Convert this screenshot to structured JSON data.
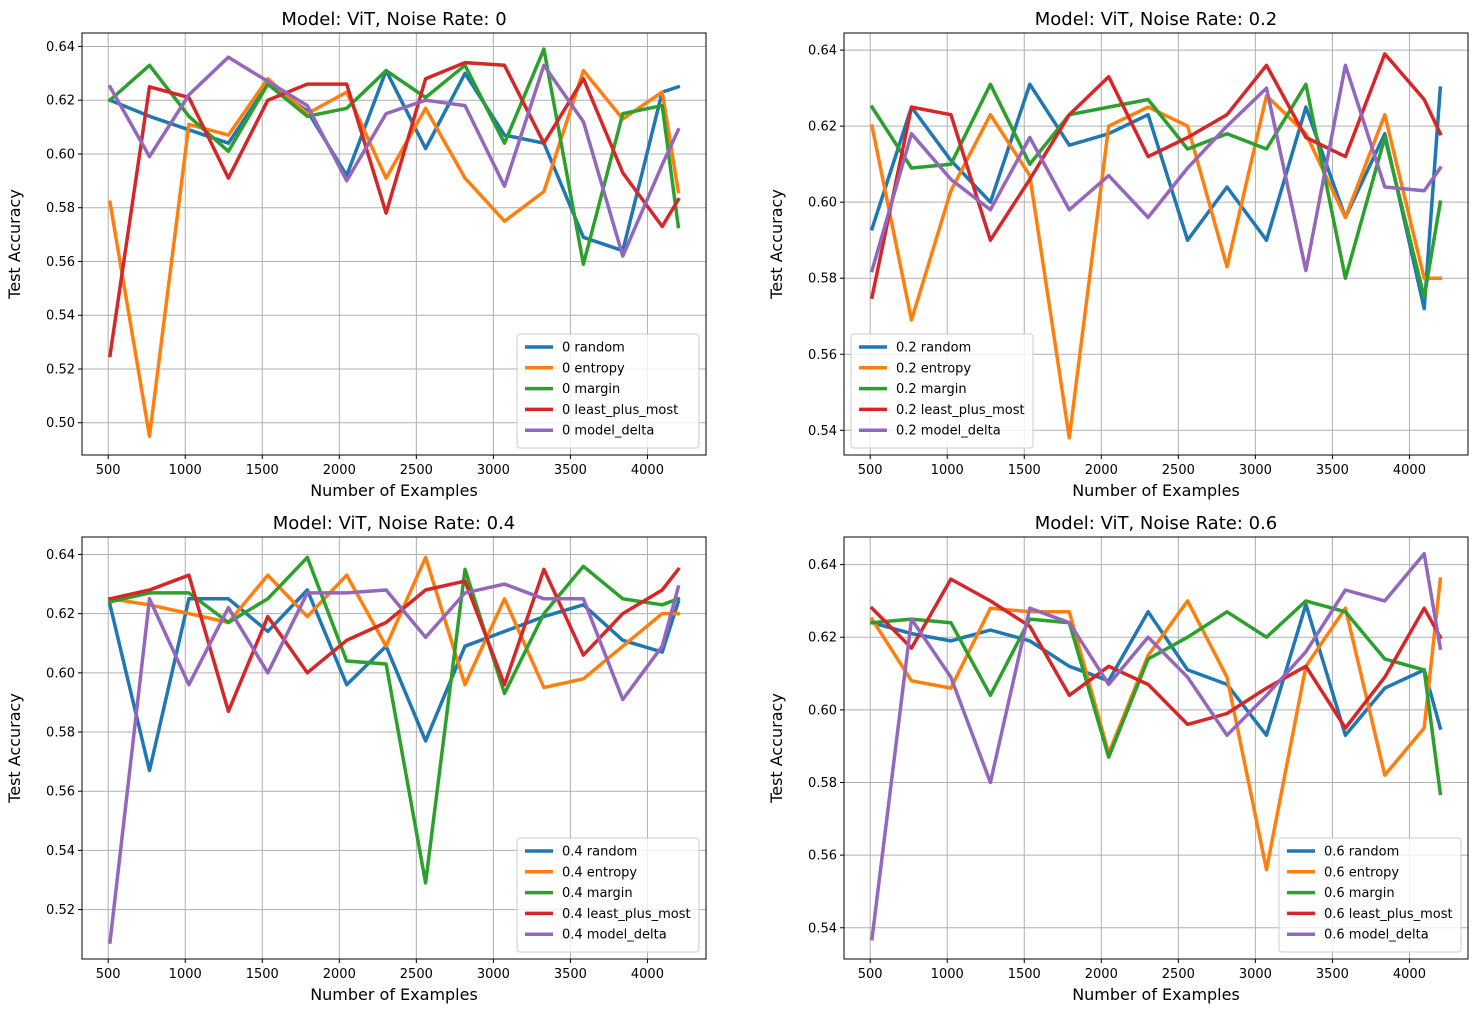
{
  "colors": {
    "random": "#1f77b4",
    "entropy": "#ff7f0e",
    "margin": "#2ca02c",
    "least_plus_most": "#d62728",
    "model_delta": "#9467bd"
  },
  "chart_data": [
    {
      "type": "line",
      "title": "Model: ViT, Noise Rate: 0",
      "xlabel": "Number of Examples",
      "ylabel": "Test Accuracy",
      "xlim": [
        330,
        4380
      ],
      "ylim": [
        0.488,
        0.645
      ],
      "xticks": [
        500,
        1000,
        1500,
        2000,
        2500,
        3000,
        3500,
        4000
      ],
      "yticks": [
        0.5,
        0.52,
        0.54,
        0.56,
        0.58,
        0.6,
        0.62,
        0.64
      ],
      "ytick_labels": [
        "0.50",
        "0.52",
        "0.54",
        "0.56",
        "0.58",
        "0.60",
        "0.62",
        "0.64"
      ],
      "grid": true,
      "legend_position": "lower right",
      "x": [
        512,
        768,
        1024,
        1280,
        1536,
        1792,
        2048,
        2304,
        2560,
        2816,
        3072,
        3328,
        3584,
        3840,
        4096,
        4200
      ],
      "series": [
        {
          "key": "random",
          "name": "0 random",
          "values": [
            0.62,
            0.614,
            0.609,
            0.604,
            0.626,
            0.616,
            0.592,
            0.631,
            0.602,
            0.63,
            0.607,
            0.604,
            0.569,
            0.564,
            0.623,
            0.625
          ]
        },
        {
          "key": "entropy",
          "name": "0 entropy",
          "values": [
            0.582,
            0.495,
            0.611,
            0.607,
            0.628,
            0.615,
            0.623,
            0.591,
            0.617,
            0.591,
            0.575,
            0.586,
            0.631,
            0.613,
            0.623,
            0.586
          ]
        },
        {
          "key": "margin",
          "name": "0 margin",
          "values": [
            0.62,
            0.633,
            0.614,
            0.601,
            0.626,
            0.614,
            0.617,
            0.631,
            0.621,
            0.633,
            0.604,
            0.639,
            0.559,
            0.615,
            0.618,
            0.573
          ]
        },
        {
          "key": "least_plus_most",
          "name": "0 least_plus_most",
          "values": [
            0.525,
            0.625,
            0.621,
            0.591,
            0.62,
            0.626,
            0.626,
            0.578,
            0.628,
            0.634,
            0.633,
            0.604,
            0.628,
            0.593,
            0.573,
            0.583
          ]
        },
        {
          "key": "model_delta",
          "name": "0 model_delta",
          "values": [
            0.625,
            0.599,
            0.622,
            0.636,
            0.627,
            0.618,
            0.59,
            0.615,
            0.62,
            0.618,
            0.588,
            0.633,
            0.612,
            0.562,
            0.596,
            0.609
          ]
        }
      ]
    },
    {
      "type": "line",
      "title": "Model: ViT, Noise Rate: 0.2",
      "xlabel": "Number of Examples",
      "ylabel": "Test Accuracy",
      "xlim": [
        330,
        4380
      ],
      "ylim": [
        0.5335,
        0.6445
      ],
      "xticks": [
        500,
        1000,
        1500,
        2000,
        2500,
        3000,
        3500,
        4000
      ],
      "yticks": [
        0.54,
        0.56,
        0.58,
        0.6,
        0.62,
        0.64
      ],
      "ytick_labels": [
        "0.54",
        "0.56",
        "0.58",
        "0.60",
        "0.62",
        "0.64"
      ],
      "grid": true,
      "legend_position": "lower left",
      "x": [
        512,
        768,
        1024,
        1280,
        1536,
        1792,
        2048,
        2304,
        2560,
        2816,
        3072,
        3328,
        3584,
        3840,
        4096,
        4200
      ],
      "series": [
        {
          "key": "random",
          "name": "0.2 random",
          "values": [
            0.593,
            0.625,
            0.611,
            0.6,
            0.631,
            0.615,
            0.618,
            0.623,
            0.59,
            0.604,
            0.59,
            0.625,
            0.596,
            0.618,
            0.572,
            0.63
          ]
        },
        {
          "key": "entropy",
          "name": "0.2 entropy",
          "values": [
            0.62,
            0.569,
            0.603,
            0.623,
            0.607,
            0.538,
            0.62,
            0.625,
            0.62,
            0.583,
            0.628,
            0.618,
            0.596,
            0.623,
            0.58,
            0.58
          ]
        },
        {
          "key": "margin",
          "name": "0.2 margin",
          "values": [
            0.625,
            0.609,
            0.61,
            0.631,
            0.61,
            0.623,
            0.625,
            0.627,
            0.614,
            0.618,
            0.614,
            0.631,
            0.58,
            0.617,
            0.575,
            0.6
          ]
        },
        {
          "key": "least_plus_most",
          "name": "0.2 least_plus_most",
          "values": [
            0.575,
            0.625,
            0.623,
            0.59,
            0.606,
            0.623,
            0.633,
            0.612,
            0.617,
            0.623,
            0.636,
            0.617,
            0.612,
            0.639,
            0.627,
            0.618
          ]
        },
        {
          "key": "model_delta",
          "name": "0.2 model_delta",
          "values": [
            0.582,
            0.618,
            0.606,
            0.598,
            0.617,
            0.598,
            0.607,
            0.596,
            0.609,
            0.62,
            0.63,
            0.582,
            0.636,
            0.604,
            0.603,
            0.609
          ]
        }
      ]
    },
    {
      "type": "line",
      "title": "Model: ViT, Noise Rate: 0.4",
      "xlabel": "Number of Examples",
      "ylabel": "Test Accuracy",
      "xlim": [
        330,
        4380
      ],
      "ylim": [
        0.5033,
        0.6459
      ],
      "xticks": [
        500,
        1000,
        1500,
        2000,
        2500,
        3000,
        3500,
        4000
      ],
      "yticks": [
        0.52,
        0.54,
        0.56,
        0.58,
        0.6,
        0.62,
        0.64
      ],
      "ytick_labels": [
        "0.52",
        "0.54",
        "0.56",
        "0.58",
        "0.60",
        "0.62",
        "0.64"
      ],
      "grid": true,
      "legend_position": "lower right",
      "x": [
        512,
        768,
        1024,
        1280,
        1536,
        1792,
        2048,
        2304,
        2560,
        2816,
        3072,
        3328,
        3584,
        3840,
        4096,
        4200
      ],
      "series": [
        {
          "key": "random",
          "name": "0.4 random",
          "values": [
            0.623,
            0.567,
            0.625,
            0.625,
            0.614,
            0.628,
            0.596,
            0.609,
            0.577,
            0.609,
            0.614,
            0.619,
            0.623,
            0.611,
            0.607,
            0.624
          ]
        },
        {
          "key": "entropy",
          "name": "0.4 entropy",
          "values": [
            0.625,
            0.623,
            0.62,
            0.617,
            0.633,
            0.619,
            0.633,
            0.609,
            0.639,
            0.596,
            0.625,
            0.595,
            0.598,
            0.609,
            0.62,
            0.62
          ]
        },
        {
          "key": "margin",
          "name": "0.4 margin",
          "values": [
            0.624,
            0.627,
            0.627,
            0.617,
            0.625,
            0.639,
            0.604,
            0.603,
            0.529,
            0.635,
            0.593,
            0.62,
            0.636,
            0.625,
            0.623,
            0.625
          ]
        },
        {
          "key": "least_plus_most",
          "name": "0.4 least_plus_most",
          "values": [
            0.625,
            0.628,
            0.633,
            0.587,
            0.619,
            0.6,
            0.611,
            0.617,
            0.628,
            0.631,
            0.596,
            0.635,
            0.606,
            0.62,
            0.628,
            0.635
          ]
        },
        {
          "key": "model_delta",
          "name": "0.4 model_delta",
          "values": [
            0.509,
            0.625,
            0.596,
            0.622,
            0.6,
            0.627,
            0.627,
            0.628,
            0.612,
            0.627,
            0.63,
            0.625,
            0.625,
            0.591,
            0.609,
            0.629
          ]
        }
      ]
    },
    {
      "type": "line",
      "title": "Model: ViT, Noise Rate: 0.6",
      "xlabel": "Number of Examples",
      "ylabel": "Test Accuracy",
      "xlim": [
        330,
        4380
      ],
      "ylim": [
        0.5314,
        0.6476
      ],
      "xticks": [
        500,
        1000,
        1500,
        2000,
        2500,
        3000,
        3500,
        4000
      ],
      "yticks": [
        0.54,
        0.56,
        0.58,
        0.6,
        0.62,
        0.64
      ],
      "ytick_labels": [
        "0.54",
        "0.56",
        "0.58",
        "0.60",
        "0.62",
        "0.64"
      ],
      "grid": true,
      "legend_position": "lower right",
      "x": [
        512,
        768,
        1024,
        1280,
        1536,
        1792,
        2048,
        2304,
        2560,
        2816,
        3072,
        3328,
        3584,
        3840,
        4096,
        4200
      ],
      "series": [
        {
          "key": "random",
          "name": "0.6 random",
          "values": [
            0.624,
            0.621,
            0.619,
            0.622,
            0.619,
            0.612,
            0.608,
            0.627,
            0.611,
            0.607,
            0.593,
            0.629,
            0.593,
            0.606,
            0.611,
            0.595
          ]
        },
        {
          "key": "entropy",
          "name": "0.6 entropy",
          "values": [
            0.625,
            0.608,
            0.606,
            0.628,
            0.627,
            0.627,
            0.588,
            0.615,
            0.63,
            0.609,
            0.556,
            0.612,
            0.628,
            0.582,
            0.595,
            0.636
          ]
        },
        {
          "key": "margin",
          "name": "0.6 margin",
          "values": [
            0.624,
            0.625,
            0.624,
            0.604,
            0.625,
            0.624,
            0.587,
            0.614,
            0.62,
            0.627,
            0.62,
            0.63,
            0.627,
            0.614,
            0.611,
            0.577
          ]
        },
        {
          "key": "least_plus_most",
          "name": "0.6 least_plus_most",
          "values": [
            0.628,
            0.617,
            0.636,
            0.63,
            0.623,
            0.604,
            0.612,
            0.607,
            0.596,
            0.599,
            0.606,
            0.612,
            0.595,
            0.609,
            0.628,
            0.62
          ]
        },
        {
          "key": "model_delta",
          "name": "0.6 model_delta",
          "values": [
            0.537,
            0.625,
            0.609,
            0.58,
            0.628,
            0.624,
            0.607,
            0.62,
            0.609,
            0.593,
            0.604,
            0.616,
            0.633,
            0.63,
            0.643,
            0.617
          ]
        }
      ]
    }
  ]
}
